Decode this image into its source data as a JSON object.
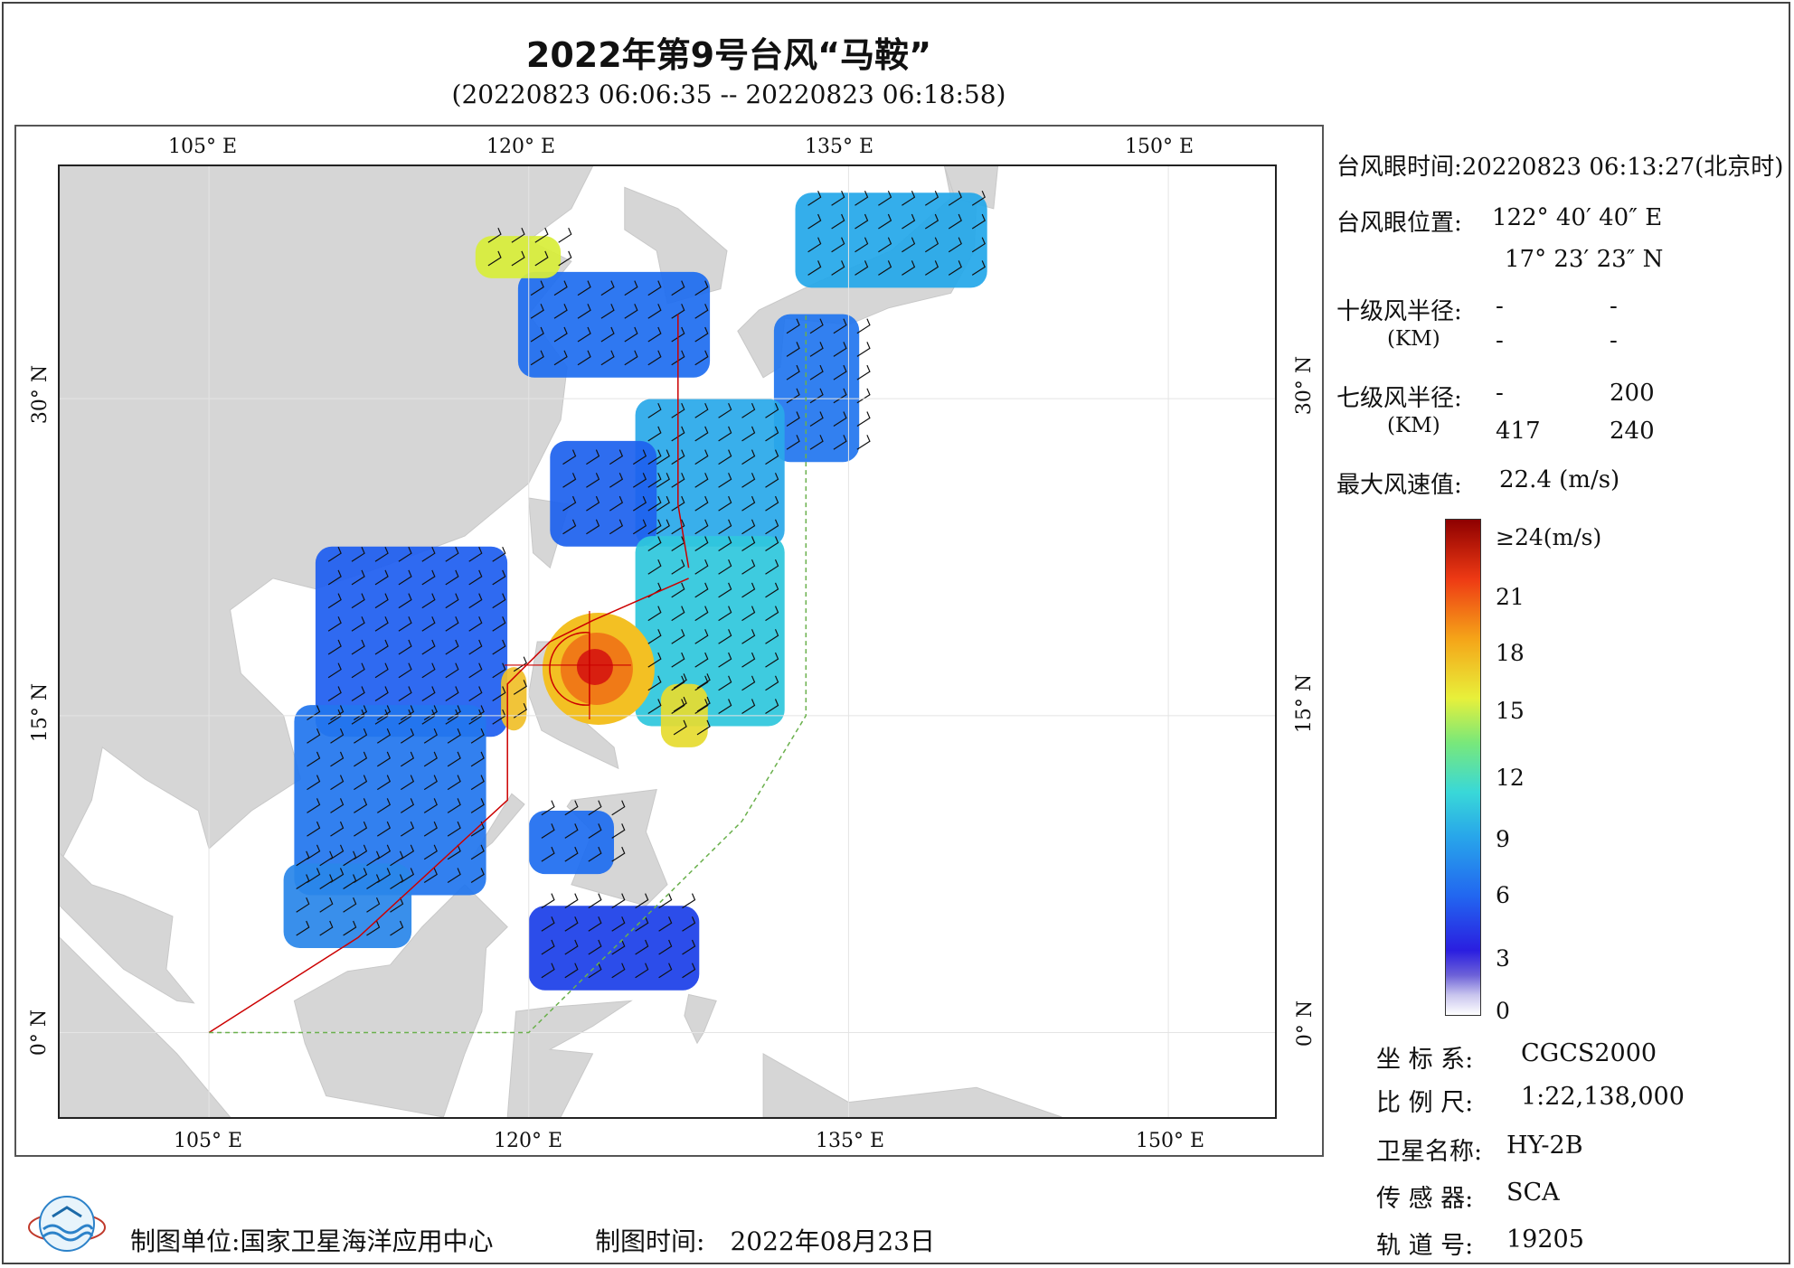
{
  "title": "2022年第9号台风“马鞍”",
  "subtitle": "(20220823 06:06:35 -- 20220823 06:18:58)",
  "map": {
    "lon_labels_top": [
      "105° E",
      "120° E",
      "135° E",
      "150° E"
    ],
    "lon_labels_bottom": [
      "105° E",
      "120° E",
      "135° E",
      "150° E"
    ],
    "lat_labels_left": [
      "30° N",
      "15° N",
      "0° N"
    ],
    "lat_labels_right": [
      "30° N",
      "15° N",
      "0° N"
    ],
    "extent": {
      "lon_min": 98,
      "lon_max": 155,
      "lat_min": -4,
      "lat_max": 41
    },
    "land_color": "#d6d6d6",
    "ocean_color": "#ffffff",
    "boundary_color": "#cc0000",
    "dash_line_color": "#6ab04c",
    "typhoon_eye": {
      "lon": 122.68,
      "lat": 17.39
    },
    "wind_patches": [
      {
        "lon": 124,
        "lat": 33.5,
        "w": 9,
        "h": 5,
        "color": "#1f6ef0"
      },
      {
        "lon": 137,
        "lat": 37.5,
        "w": 9,
        "h": 4.5,
        "color": "#25a8ea"
      },
      {
        "lon": 119.5,
        "lat": 36.7,
        "w": 4,
        "h": 2,
        "color": "#d8ee3a"
      },
      {
        "lon": 133.5,
        "lat": 30.5,
        "w": 4,
        "h": 7,
        "color": "#2276ef"
      },
      {
        "lon": 128.5,
        "lat": 26.5,
        "w": 7,
        "h": 7,
        "color": "#2aa9ea"
      },
      {
        "lon": 123.5,
        "lat": 25.5,
        "w": 5,
        "h": 5,
        "color": "#1e62ee"
      },
      {
        "lon": 128.5,
        "lat": 19,
        "w": 7,
        "h": 9,
        "color": "#2fc7dd"
      },
      {
        "lon": 114.5,
        "lat": 18.5,
        "w": 9,
        "h": 9,
        "color": "#1f5ff0"
      },
      {
        "lon": 113.5,
        "lat": 11,
        "w": 9,
        "h": 9,
        "color": "#2276ee"
      },
      {
        "lon": 111.5,
        "lat": 6,
        "w": 6,
        "h": 4,
        "color": "#2a86ea"
      },
      {
        "lon": 122,
        "lat": 9,
        "w": 4,
        "h": 3,
        "color": "#1f6ef0"
      },
      {
        "lon": 124,
        "lat": 4,
        "w": 8,
        "h": 4,
        "color": "#1c3fe8"
      },
      {
        "lon": 127.3,
        "lat": 15,
        "w": 2.2,
        "h": 3,
        "color": "#e6dc30"
      },
      {
        "lon": 119.3,
        "lat": 15.8,
        "w": 1.2,
        "h": 3,
        "color": "#f0c02a"
      }
    ]
  },
  "info": {
    "eye_time_label": "台风眼时间:",
    "eye_time_value": "20220823 06:13:27(北京时)",
    "eye_pos_label": "台风眼位置:",
    "eye_lon": "122° 40′ 40″ E",
    "eye_lat": "17° 23′ 23″ N",
    "r10_label": "十级风半径:",
    "r10_unit": "(KM)",
    "r10_values": [
      "-",
      "-",
      "-",
      "-"
    ],
    "r7_label": "七级风半径:",
    "r7_unit": "(KM)",
    "r7_values": [
      "-",
      "200",
      "417",
      "240"
    ],
    "max_wind_label": "最大风速值:",
    "max_wind_value": "22.4 (m/s)"
  },
  "colorbar": {
    "labels": [
      "≥24(m/s)",
      "21",
      "18",
      "15",
      "12",
      "9",
      "6",
      "3",
      "0"
    ]
  },
  "meta": {
    "crs_label": "坐 标 系:",
    "crs_value": "CGCS2000",
    "scale_label": "比 例 尺:",
    "scale_value": "1:22,138,000",
    "satellite_label": "卫星名称:",
    "satellite_value": "HY-2B",
    "sensor_label": "传 感 器:",
    "sensor_value": "SCA",
    "orbit_label": "轨 道 号:",
    "orbit_value": "19205"
  },
  "footer": {
    "unit_label": "制图单位:",
    "unit_value": "国家卫星海洋应用中心",
    "time_label": "制图时间:",
    "time_value": "2022年08月23日"
  }
}
